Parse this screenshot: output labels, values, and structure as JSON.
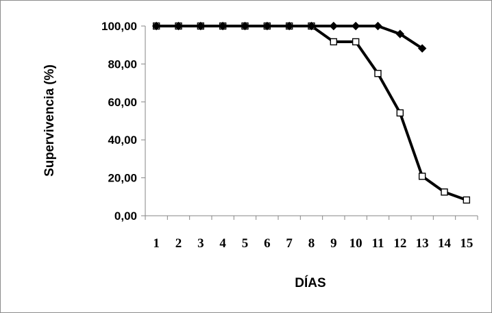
{
  "chart_data": {
    "type": "line",
    "title": "",
    "xlabel": "DÍAS",
    "ylabel": "Supervivencia (%)",
    "categories": [
      "1",
      "2",
      "3",
      "4",
      "5",
      "6",
      "7",
      "8",
      "9",
      "10",
      "11",
      "12",
      "13",
      "14",
      "15"
    ],
    "ylim": [
      0,
      100
    ],
    "yticks": [
      "0,00",
      "20,00",
      "40,00",
      "60,00",
      "80,00",
      "100,00"
    ],
    "grid": false,
    "legend": "none",
    "series": [
      {
        "marker": "diamond-filled",
        "color": "#000000",
        "values": [
          100,
          100,
          100,
          100,
          100,
          100,
          100,
          100,
          100,
          100,
          100,
          95.8,
          88.2,
          null,
          null
        ]
      },
      {
        "marker": "square-open",
        "color": "#000000",
        "values": [
          100,
          100,
          100,
          100,
          100,
          100,
          100,
          100,
          91.7,
          91.7,
          75,
          54.2,
          20.8,
          12.5,
          8.3
        ]
      }
    ]
  }
}
